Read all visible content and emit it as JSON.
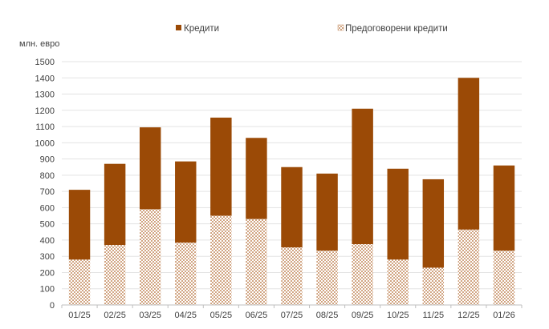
{
  "chart_data": {
    "type": "bar",
    "stacked": true,
    "ylabel": "млн. евро",
    "ylim": [
      0,
      1500
    ],
    "ytick_step": 100,
    "grid": true,
    "legend_position": "top",
    "categories": [
      "01/25",
      "02/25",
      "03/25",
      "04/25",
      "05/25",
      "06/25",
      "07/25",
      "08/25",
      "09/25",
      "10/25",
      "11/25",
      "12/25",
      "01/26"
    ],
    "series": [
      {
        "name": "Предоговорени кредити",
        "pattern": "dotted",
        "color": "#c8936a",
        "values": [
          280,
          370,
          590,
          385,
          550,
          530,
          355,
          335,
          375,
          280,
          230,
          465,
          335
        ]
      },
      {
        "name": "Кредити",
        "pattern": "solid",
        "color": "#9b4a06",
        "values": [
          430,
          500,
          505,
          500,
          605,
          500,
          495,
          475,
          835,
          560,
          545,
          935,
          525
        ]
      }
    ]
  }
}
